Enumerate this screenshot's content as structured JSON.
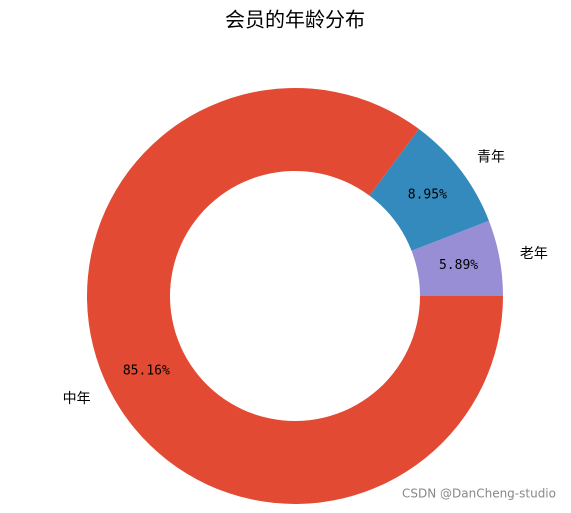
{
  "chart_data": {
    "type": "donut",
    "title": "会员的年龄分布",
    "categories": [
      "老年",
      "青年",
      "中年"
    ],
    "values": [
      5.89,
      8.95,
      85.16
    ],
    "value_labels": [
      "5.89%",
      "8.95%",
      "85.16%"
    ],
    "colors": [
      "#988ED5",
      "#348ABD",
      "#E24A33"
    ]
  },
  "watermark": "CSDN @DanCheng-studio"
}
